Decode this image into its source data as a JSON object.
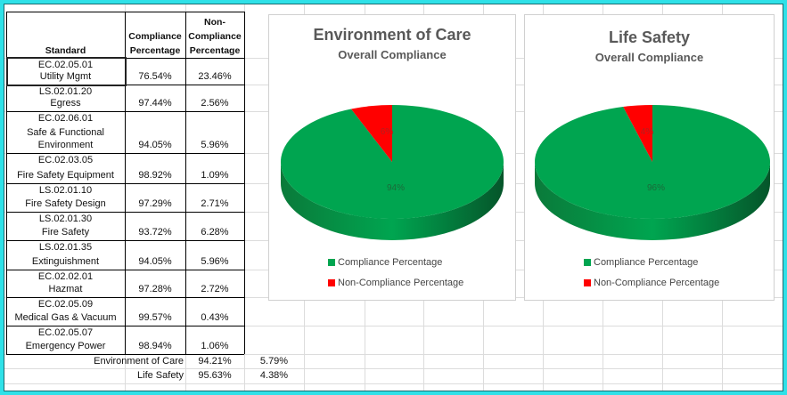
{
  "table": {
    "headers": {
      "standard": "Standard",
      "compliance": [
        "Compliance",
        "Percentage"
      ],
      "noncompliance": [
        "Non-",
        "Compliance",
        "Percentage"
      ]
    },
    "rows": [
      {
        "code": "EC.02.05.01",
        "name": "Utility Mgmt",
        "c": "76.54%",
        "n": "23.46%"
      },
      {
        "code": "LS.02.01.20",
        "name": "Egress",
        "c": "97.44%",
        "n": "2.56%"
      },
      {
        "code": "EC.02.06.01",
        "name": "Safe & Functional",
        "name2": "Environment",
        "c": "94.05%",
        "n": "5.96%"
      },
      {
        "code": "EC.02.03.05",
        "name": "Fire Safety Equipment",
        "c": "98.92%",
        "n": "1.09%"
      },
      {
        "code": "LS.02.01.10",
        "name": "Fire Safety Design",
        "c": "97.29%",
        "n": "2.71%"
      },
      {
        "code": "LS.02.01.30",
        "name": "Fire Safety",
        "c": "93.72%",
        "n": "6.28%"
      },
      {
        "code": "LS.02.01.35",
        "name": "Extinguishment",
        "c": "94.05%",
        "n": "5.96%"
      },
      {
        "code": "EC.02.02.01",
        "name": "Hazmat",
        "c": "97.28%",
        "n": "2.72%"
      },
      {
        "code": "EC.02.05.09",
        "name": "Medical Gas & Vacuum",
        "c": "99.57%",
        "n": "0.43%"
      },
      {
        "code": "EC.02.05.07",
        "name": "Emergency Power",
        "c": "98.94%",
        "n": "1.06%"
      }
    ],
    "summary": [
      {
        "label": "Environment of Care",
        "c": "94.21%",
        "n": "5.79%"
      },
      {
        "label": "Life Safety",
        "c": "95.63%",
        "n": "4.38%"
      }
    ]
  },
  "chart_data": [
    {
      "type": "pie",
      "title": "Environment  of Care",
      "subtitle": "Overall Compliance",
      "categories": [
        "Compliance Percentage",
        "Non-Compliance Percentage"
      ],
      "values": [
        94,
        6
      ],
      "labels": [
        "94%",
        "6%"
      ],
      "colors": [
        "#00a550",
        "#ff0000"
      ],
      "legend": "bottom"
    },
    {
      "type": "pie",
      "title": "Life Safety",
      "subtitle": "Overall Compliance",
      "categories": [
        "Compliance Percentage",
        "Non-Compliance Percentage"
      ],
      "values": [
        96,
        4
      ],
      "labels": [
        "96%",
        "4%"
      ],
      "colors": [
        "#00a550",
        "#ff0000"
      ],
      "legend": "bottom"
    }
  ]
}
